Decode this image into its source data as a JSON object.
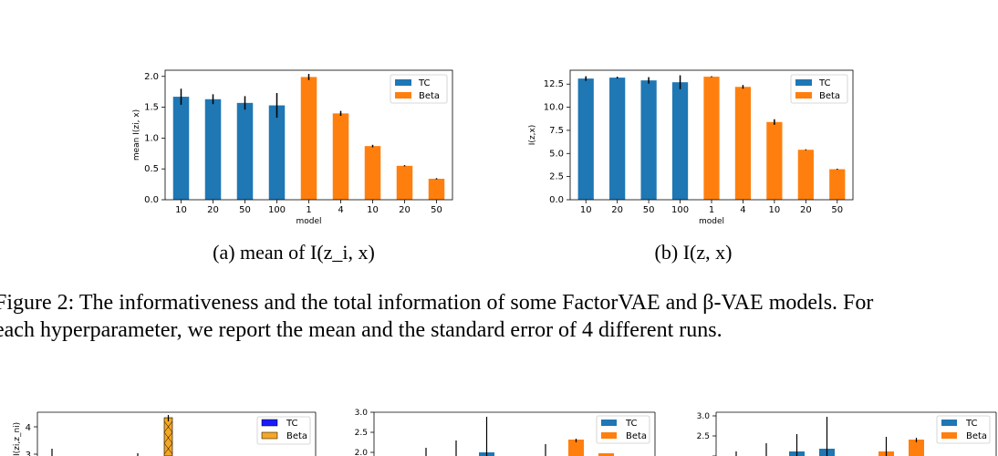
{
  "chart_data": [
    {
      "type": "bar",
      "categories": [
        "10",
        "20",
        "50",
        "100",
        "1",
        "4",
        "10",
        "20",
        "50"
      ],
      "series": [
        {
          "name": "TC",
          "color": "#1f77b4",
          "values": [
            1.67,
            1.63,
            1.57,
            1.53,
            null,
            null,
            null,
            null,
            null
          ],
          "errors": [
            0.13,
            0.08,
            0.11,
            0.2,
            null,
            null,
            null,
            null,
            null
          ]
        },
        {
          "name": "Beta",
          "color": "#ff7f0e",
          "values": [
            null,
            null,
            null,
            null,
            1.99,
            1.4,
            0.87,
            0.55,
            0.34
          ],
          "errors": [
            null,
            null,
            null,
            null,
            0.05,
            0.04,
            0.02,
            0.01,
            0.01
          ]
        }
      ],
      "ylim": [
        0,
        2.1
      ],
      "yticks": [
        "0.0",
        "0.5",
        "1.0",
        "1.5",
        "2.0"
      ],
      "ytick_values": [
        0,
        0.5,
        1.0,
        1.5,
        2.0
      ],
      "xlabel": "model",
      "ylabel": "mean I(zi, x)",
      "legend": "top-right",
      "caption": "(a) mean of I(z_i, x)"
    },
    {
      "type": "bar",
      "categories": [
        "10",
        "20",
        "50",
        "100",
        "1",
        "4",
        "10",
        "20",
        "50"
      ],
      "series": [
        {
          "name": "TC",
          "color": "#1f77b4",
          "values": [
            13.1,
            13.2,
            12.9,
            12.7,
            null,
            null,
            null,
            null,
            null
          ],
          "errors": [
            0.25,
            0.1,
            0.35,
            0.75,
            null,
            null,
            null,
            null,
            null
          ]
        },
        {
          "name": "Beta",
          "color": "#ff7f0e",
          "values": [
            null,
            null,
            null,
            null,
            13.3,
            12.2,
            8.4,
            5.4,
            3.3
          ],
          "errors": [
            null,
            null,
            null,
            null,
            0.05,
            0.2,
            0.3,
            0.05,
            0.05
          ]
        }
      ],
      "ylim": [
        0,
        14
      ],
      "yticks": [
        "0.0",
        "2.5",
        "5.0",
        "7.5",
        "10.0",
        "12.5"
      ],
      "ytick_values": [
        0,
        2.5,
        5.0,
        7.5,
        10.0,
        12.5
      ],
      "xlabel": "model",
      "ylabel": "I(z,x)",
      "legend": "top-right",
      "caption": "(b) I(z, x)"
    }
  ],
  "figure_caption_line1": "Figure 2: The informativeness and the total information of some FactorVAE and β-VAE models. For",
  "figure_caption_line2": "each hyperparameter, we report the mean and the standard error of 4 different runs.",
  "bottom_panels": [
    {
      "ylabel": "I(zi,z_ni)",
      "yticks": [
        "3",
        "4"
      ],
      "legend": [
        "TC",
        "Beta"
      ],
      "colors": {
        "TC": "#1a1aff",
        "Beta": "#f5a623"
      }
    },
    {
      "yticks": [
        "2.0",
        "2.5",
        "3.0"
      ],
      "legend": [
        "TC",
        "Beta"
      ],
      "colors": {
        "TC": "#1f77b4",
        "Beta": "#ff7f0e"
      }
    },
    {
      "yticks": [
        "2.0",
        "2.5",
        "3.0"
      ],
      "legend": [
        "TC",
        "Beta"
      ],
      "colors": {
        "TC": "#1f77b4",
        "Beta": "#ff7f0e"
      }
    }
  ]
}
